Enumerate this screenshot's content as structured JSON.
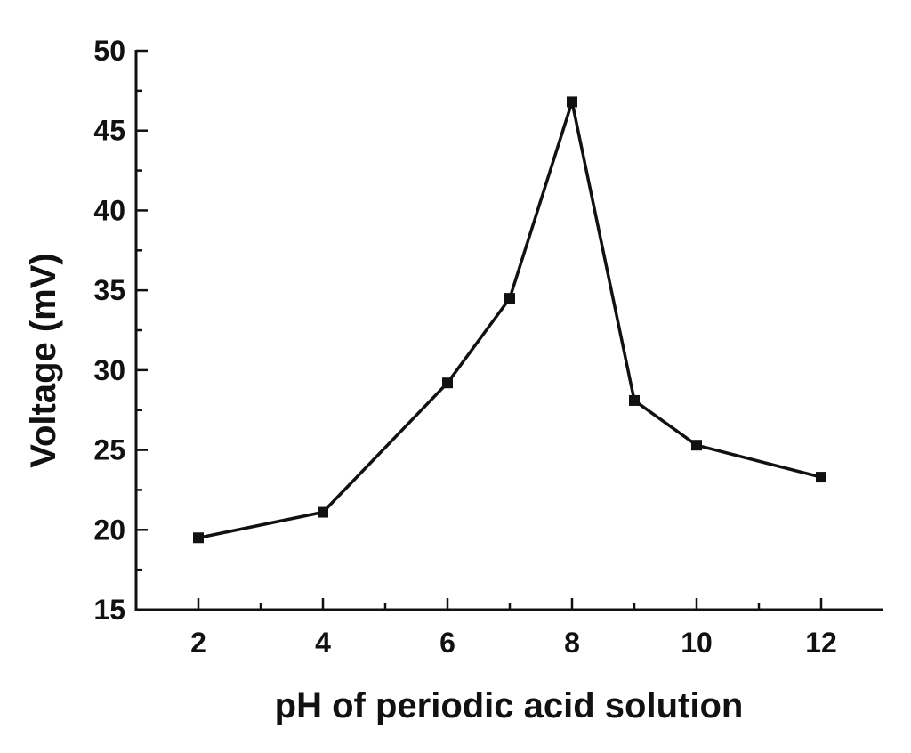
{
  "chart_data": {
    "type": "line",
    "title": "",
    "xlabel": "pH of periodic acid solution",
    "ylabel": "Voltage (mV)",
    "xlim": [
      1.0,
      13.0
    ],
    "ylim": [
      15,
      50
    ],
    "x_ticks": [
      2,
      4,
      6,
      8,
      10,
      12
    ],
    "x_tick_labels": [
      "2",
      "4",
      "6",
      "8",
      "10",
      "12"
    ],
    "x_minor_ticks": [
      3,
      5,
      7,
      9,
      11
    ],
    "y_ticks": [
      15,
      20,
      25,
      30,
      35,
      40,
      45,
      50
    ],
    "y_tick_labels": [
      "15",
      "20",
      "25",
      "30",
      "35",
      "40",
      "45",
      "50"
    ],
    "y_minor_ticks": [
      17.5,
      22.5,
      27.5,
      32.5,
      37.5,
      42.5,
      47.5
    ],
    "grid": false,
    "legend": "none",
    "marker": "square",
    "color": "#111111",
    "series": [
      {
        "x": [
          2,
          4,
          6,
          7,
          8,
          9,
          10,
          12
        ],
        "y": [
          19.5,
          21.1,
          29.2,
          34.5,
          46.8,
          28.1,
          25.3,
          23.3
        ]
      }
    ]
  }
}
